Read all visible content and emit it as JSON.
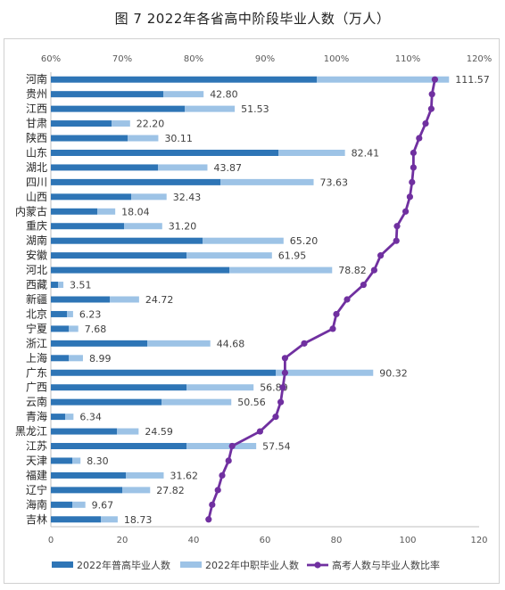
{
  "chart_data": {
    "type": "bar",
    "title": "图 7 2022年各省高中阶段毕业人数（万人）",
    "categories": [
      "河南",
      "贵州",
      "江西",
      "甘肃",
      "陕西",
      "山东",
      "湖北",
      "四川",
      "山西",
      "内蒙古",
      "重庆",
      "湖南",
      "安徽",
      "河北",
      "西藏",
      "新疆",
      "北京",
      "宁夏",
      "浙江",
      "上海",
      "广东",
      "广西",
      "云南",
      "青海",
      "黑龙江",
      "江苏",
      "天津",
      "福建",
      "辽宁",
      "海南",
      "吉林"
    ],
    "series": [
      {
        "name": "2022年普高毕业人数",
        "color": "#2e75b6",
        "type": "bar",
        "values": [
          74.5,
          31.5,
          37.5,
          17.0,
          21.5,
          63.8,
          30.0,
          47.5,
          22.5,
          13.0,
          20.5,
          42.5,
          38.0,
          50.0,
          2.0,
          16.5,
          4.5,
          5.0,
          27.0,
          5.0,
          63.0,
          38.0,
          31.0,
          4.0,
          18.5,
          38.0,
          6.0,
          21.0,
          20.0,
          6.0,
          14.0
        ]
      },
      {
        "name": "2022年中职毕业人数",
        "color": "#9dc3e6",
        "type": "bar",
        "values": [
          37.07,
          11.3,
          14.03,
          5.2,
          8.61,
          18.61,
          13.87,
          26.13,
          9.93,
          5.04,
          10.7,
          22.7,
          23.95,
          28.82,
          1.51,
          8.22,
          1.73,
          2.68,
          17.68,
          3.99,
          27.32,
          18.8,
          19.56,
          2.34,
          6.09,
          19.54,
          2.3,
          10.62,
          7.82,
          3.67,
          4.73
        ]
      },
      {
        "name": "高考人数与毕业人数比率",
        "color": "#7030a0",
        "type": "line",
        "values": [
          113.8,
          113.4,
          113.3,
          112.5,
          111.6,
          110.8,
          110.8,
          110.6,
          110.3,
          109.7,
          108.5,
          108.4,
          106.2,
          105.3,
          103.8,
          101.5,
          100.0,
          99.5,
          95.5,
          92.8,
          92.8,
          92.5,
          92.2,
          91.5,
          89.3,
          85.4,
          84.9,
          84.0,
          83.4,
          82.6,
          82.1
        ]
      }
    ],
    "totals": [
      "111.57",
      "42.80",
      "51.53",
      "22.20",
      "30.11",
      "82.41",
      "43.87",
      "73.63",
      "32.43",
      "18.04",
      "31.20",
      "65.20",
      "61.95",
      "78.82",
      "3.51",
      "24.72",
      "6.23",
      "7.68",
      "44.68",
      "8.99",
      "90.32",
      "56.80",
      "50.56",
      "6.34",
      "24.59",
      "57.54",
      "8.30",
      "31.62",
      "27.82",
      "9.67",
      "18.73"
    ],
    "x_bottom": {
      "ticks": [
        "0",
        "20",
        "40",
        "60",
        "80",
        "100",
        "120"
      ],
      "range": [
        0,
        120
      ]
    },
    "x_top": {
      "ticks": [
        "60%",
        "70%",
        "80%",
        "90%",
        "100%",
        "110%",
        "120%"
      ],
      "range": [
        60,
        120
      ]
    },
    "legend_position": "bottom",
    "grid": false
  }
}
